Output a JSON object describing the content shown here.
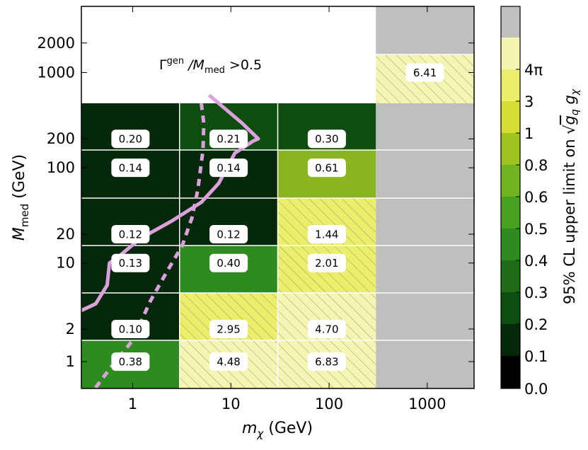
{
  "chart_data": {
    "type": "heatmap",
    "xlabel": "m_χ (GeV)",
    "ylabel": "M_med (GeV)",
    "x_scale": "log",
    "y_scale": "log",
    "x_ticks": [
      1,
      10,
      100,
      1000
    ],
    "y_ticks": [
      1,
      2,
      10,
      20,
      100,
      200,
      1000,
      2000
    ],
    "x_bins": [
      [
        0.3,
        3
      ],
      [
        3,
        30
      ],
      [
        30,
        300
      ],
      [
        300,
        3000
      ]
    ],
    "y_rows": [
      [
        0.6,
        1.5
      ],
      [
        1.5,
        5
      ],
      [
        5,
        15
      ],
      [
        15,
        50
      ],
      [
        50,
        150
      ],
      [
        150,
        500
      ],
      [
        500,
        1500
      ]
    ],
    "cells": [
      {
        "x": 1,
        "y": 1,
        "value": 0.38,
        "label": "0.38",
        "color": "#2e8b1f",
        "hatched": false
      },
      {
        "x": 10,
        "y": 1,
        "value": 4.48,
        "label": "4.48",
        "color": "#f4f5b3",
        "hatched": true
      },
      {
        "x": 100,
        "y": 1,
        "value": 6.83,
        "label": "6.83",
        "color": "#f4f5b3",
        "hatched": true
      },
      {
        "x": 1000,
        "y": 1,
        "value": null,
        "label": "",
        "color": "#bfbfbf",
        "hatched": false
      },
      {
        "x": 1,
        "y": 2,
        "value": 0.1,
        "label": "0.10",
        "color": "#06280a",
        "hatched": false
      },
      {
        "x": 10,
        "y": 2,
        "value": 2.95,
        "label": "2.95",
        "color": "#eaee6a",
        "hatched": true
      },
      {
        "x": 100,
        "y": 2,
        "value": 4.7,
        "label": "4.70",
        "color": "#f4f5b3",
        "hatched": true
      },
      {
        "x": 1000,
        "y": 2,
        "value": null,
        "label": "",
        "color": "#bfbfbf",
        "hatched": false
      },
      {
        "x": 1,
        "y": 10,
        "value": 0.13,
        "label": "0.13",
        "color": "#06280a",
        "hatched": false
      },
      {
        "x": 10,
        "y": 10,
        "value": 0.4,
        "label": "0.40",
        "color": "#2e8b1f",
        "hatched": false
      },
      {
        "x": 100,
        "y": 10,
        "value": 2.01,
        "label": "2.01",
        "color": "#eaee6a",
        "hatched": true
      },
      {
        "x": 1000,
        "y": 10,
        "value": null,
        "label": "",
        "color": "#bfbfbf",
        "hatched": false
      },
      {
        "x": 1,
        "y": 20,
        "value": 0.12,
        "label": "0.12",
        "color": "#06280a",
        "hatched": false
      },
      {
        "x": 10,
        "y": 20,
        "value": 0.12,
        "label": "0.12",
        "color": "#06280a",
        "hatched": false
      },
      {
        "x": 100,
        "y": 20,
        "value": 1.44,
        "label": "1.44",
        "color": "#eaee6a",
        "hatched": true
      },
      {
        "x": 1000,
        "y": 20,
        "value": null,
        "label": "",
        "color": "#bfbfbf",
        "hatched": false
      },
      {
        "x": 1,
        "y": 100,
        "value": 0.14,
        "label": "0.14",
        "color": "#06280a",
        "hatched": false
      },
      {
        "x": 10,
        "y": 100,
        "value": 0.14,
        "label": "0.14",
        "color": "#06280a",
        "hatched": false
      },
      {
        "x": 100,
        "y": 100,
        "value": 0.61,
        "label": "0.61",
        "color": "#8ab51e",
        "hatched": false
      },
      {
        "x": 1000,
        "y": 100,
        "value": null,
        "label": "",
        "color": "#bfbfbf",
        "hatched": false
      },
      {
        "x": 1,
        "y": 200,
        "value": 0.2,
        "label": "0.20",
        "color": "#06280a",
        "hatched": false
      },
      {
        "x": 10,
        "y": 200,
        "value": 0.21,
        "label": "0.21",
        "color": "#0d4d10",
        "hatched": false
      },
      {
        "x": 100,
        "y": 200,
        "value": 0.3,
        "label": "0.30",
        "color": "#0d4d10",
        "hatched": false
      },
      {
        "x": 1000,
        "y": 200,
        "value": null,
        "label": "",
        "color": "#bfbfbf",
        "hatched": false
      },
      {
        "x": 1000,
        "y": 1000,
        "value": 6.41,
        "label": "6.41",
        "color": "#f4f5b3",
        "hatched": true
      },
      {
        "x": 1000,
        "y": 2000,
        "value": null,
        "label": "",
        "color": "#bfbfbf",
        "hatched": false
      }
    ],
    "annotation": "Γ^gen /M_med >0.5",
    "curves": [
      {
        "style": "solid",
        "color": "#dca0dc",
        "points": [
          [
            0.3,
            3.2
          ],
          [
            0.42,
            3.8
          ],
          [
            0.55,
            6
          ],
          [
            0.58,
            10
          ],
          [
            0.75,
            12
          ],
          [
            1.2,
            18
          ],
          [
            2.5,
            28
          ],
          [
            5,
            45
          ],
          [
            7.5,
            70
          ],
          [
            11,
            140
          ],
          [
            17,
            190
          ],
          [
            19,
            200
          ],
          [
            13,
            300
          ],
          [
            6,
            600
          ]
        ]
      },
      {
        "style": "dashed",
        "color": "#dca0dc",
        "points": [
          [
            0.35,
            0.5
          ],
          [
            0.6,
            0.9
          ],
          [
            1,
            1.5
          ],
          [
            1.5,
            4
          ],
          [
            2.2,
            8
          ],
          [
            3.2,
            15
          ],
          [
            4,
            30
          ],
          [
            4.6,
            60
          ],
          [
            5.2,
            150
          ],
          [
            5.3,
            300
          ],
          [
            5,
            500
          ]
        ]
      }
    ],
    "colorbar": {
      "label": "95% CL upper limit on √(g_q g_χ)",
      "tick_labels": [
        "0.0",
        "0.1",
        "0.2",
        "0.3",
        "0.4",
        "0.5",
        "0.6",
        "0.8",
        "1",
        "3",
        "4π"
      ],
      "segment_colors": [
        "#000000",
        "#06280a",
        "#0d4d10",
        "#1e6b16",
        "#2e8b1f",
        "#4aa020",
        "#70b41f",
        "#a0c41e",
        "#d4de34",
        "#eaee6a",
        "#f4f5b3",
        "#bfbfbf"
      ]
    }
  }
}
